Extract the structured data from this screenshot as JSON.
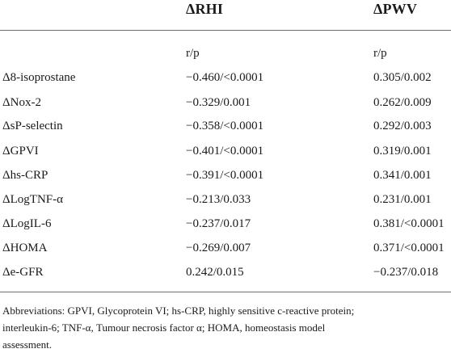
{
  "table": {
    "columns": [
      "",
      "ΔRHI",
      "ΔPWV"
    ],
    "subheader": [
      "",
      "r/p",
      "r/p"
    ],
    "rows": [
      [
        "Δ8-isoprostane",
        "−0.460/<0.0001",
        "0.305/0.002"
      ],
      [
        "ΔNox-2",
        "−0.329/0.001",
        "0.262/0.009"
      ],
      [
        "ΔsP-selectin",
        "−0.358/<0.0001",
        "0.292/0.003"
      ],
      [
        "ΔGPVI",
        "−0.401/<0.0001",
        "0.319/0.001"
      ],
      [
        "Δhs-CRP",
        "−0.391/<0.0001",
        "0.341/0.001"
      ],
      [
        "ΔLogTNF-α",
        "−0.213/0.033",
        "0.231/0.001"
      ],
      [
        "ΔLogIL-6",
        "−0.237/0.017",
        "0.381/<0.0001"
      ],
      [
        "ΔHOMA",
        "−0.269/0.007",
        "0.371/<0.0001"
      ],
      [
        "Δe-GFR",
        "0.242/0.015",
        "−0.237/0.018"
      ]
    ]
  },
  "footnote": {
    "line1": "Abbreviations: GPVI, Glycoprotein VI; hs-CRP, highly sensitive c-reactive protein;",
    "line2": "interleukin-6; TNF-α, Tumour necrosis factor α; HOMA, homeostasis model",
    "line3": "assessment."
  }
}
